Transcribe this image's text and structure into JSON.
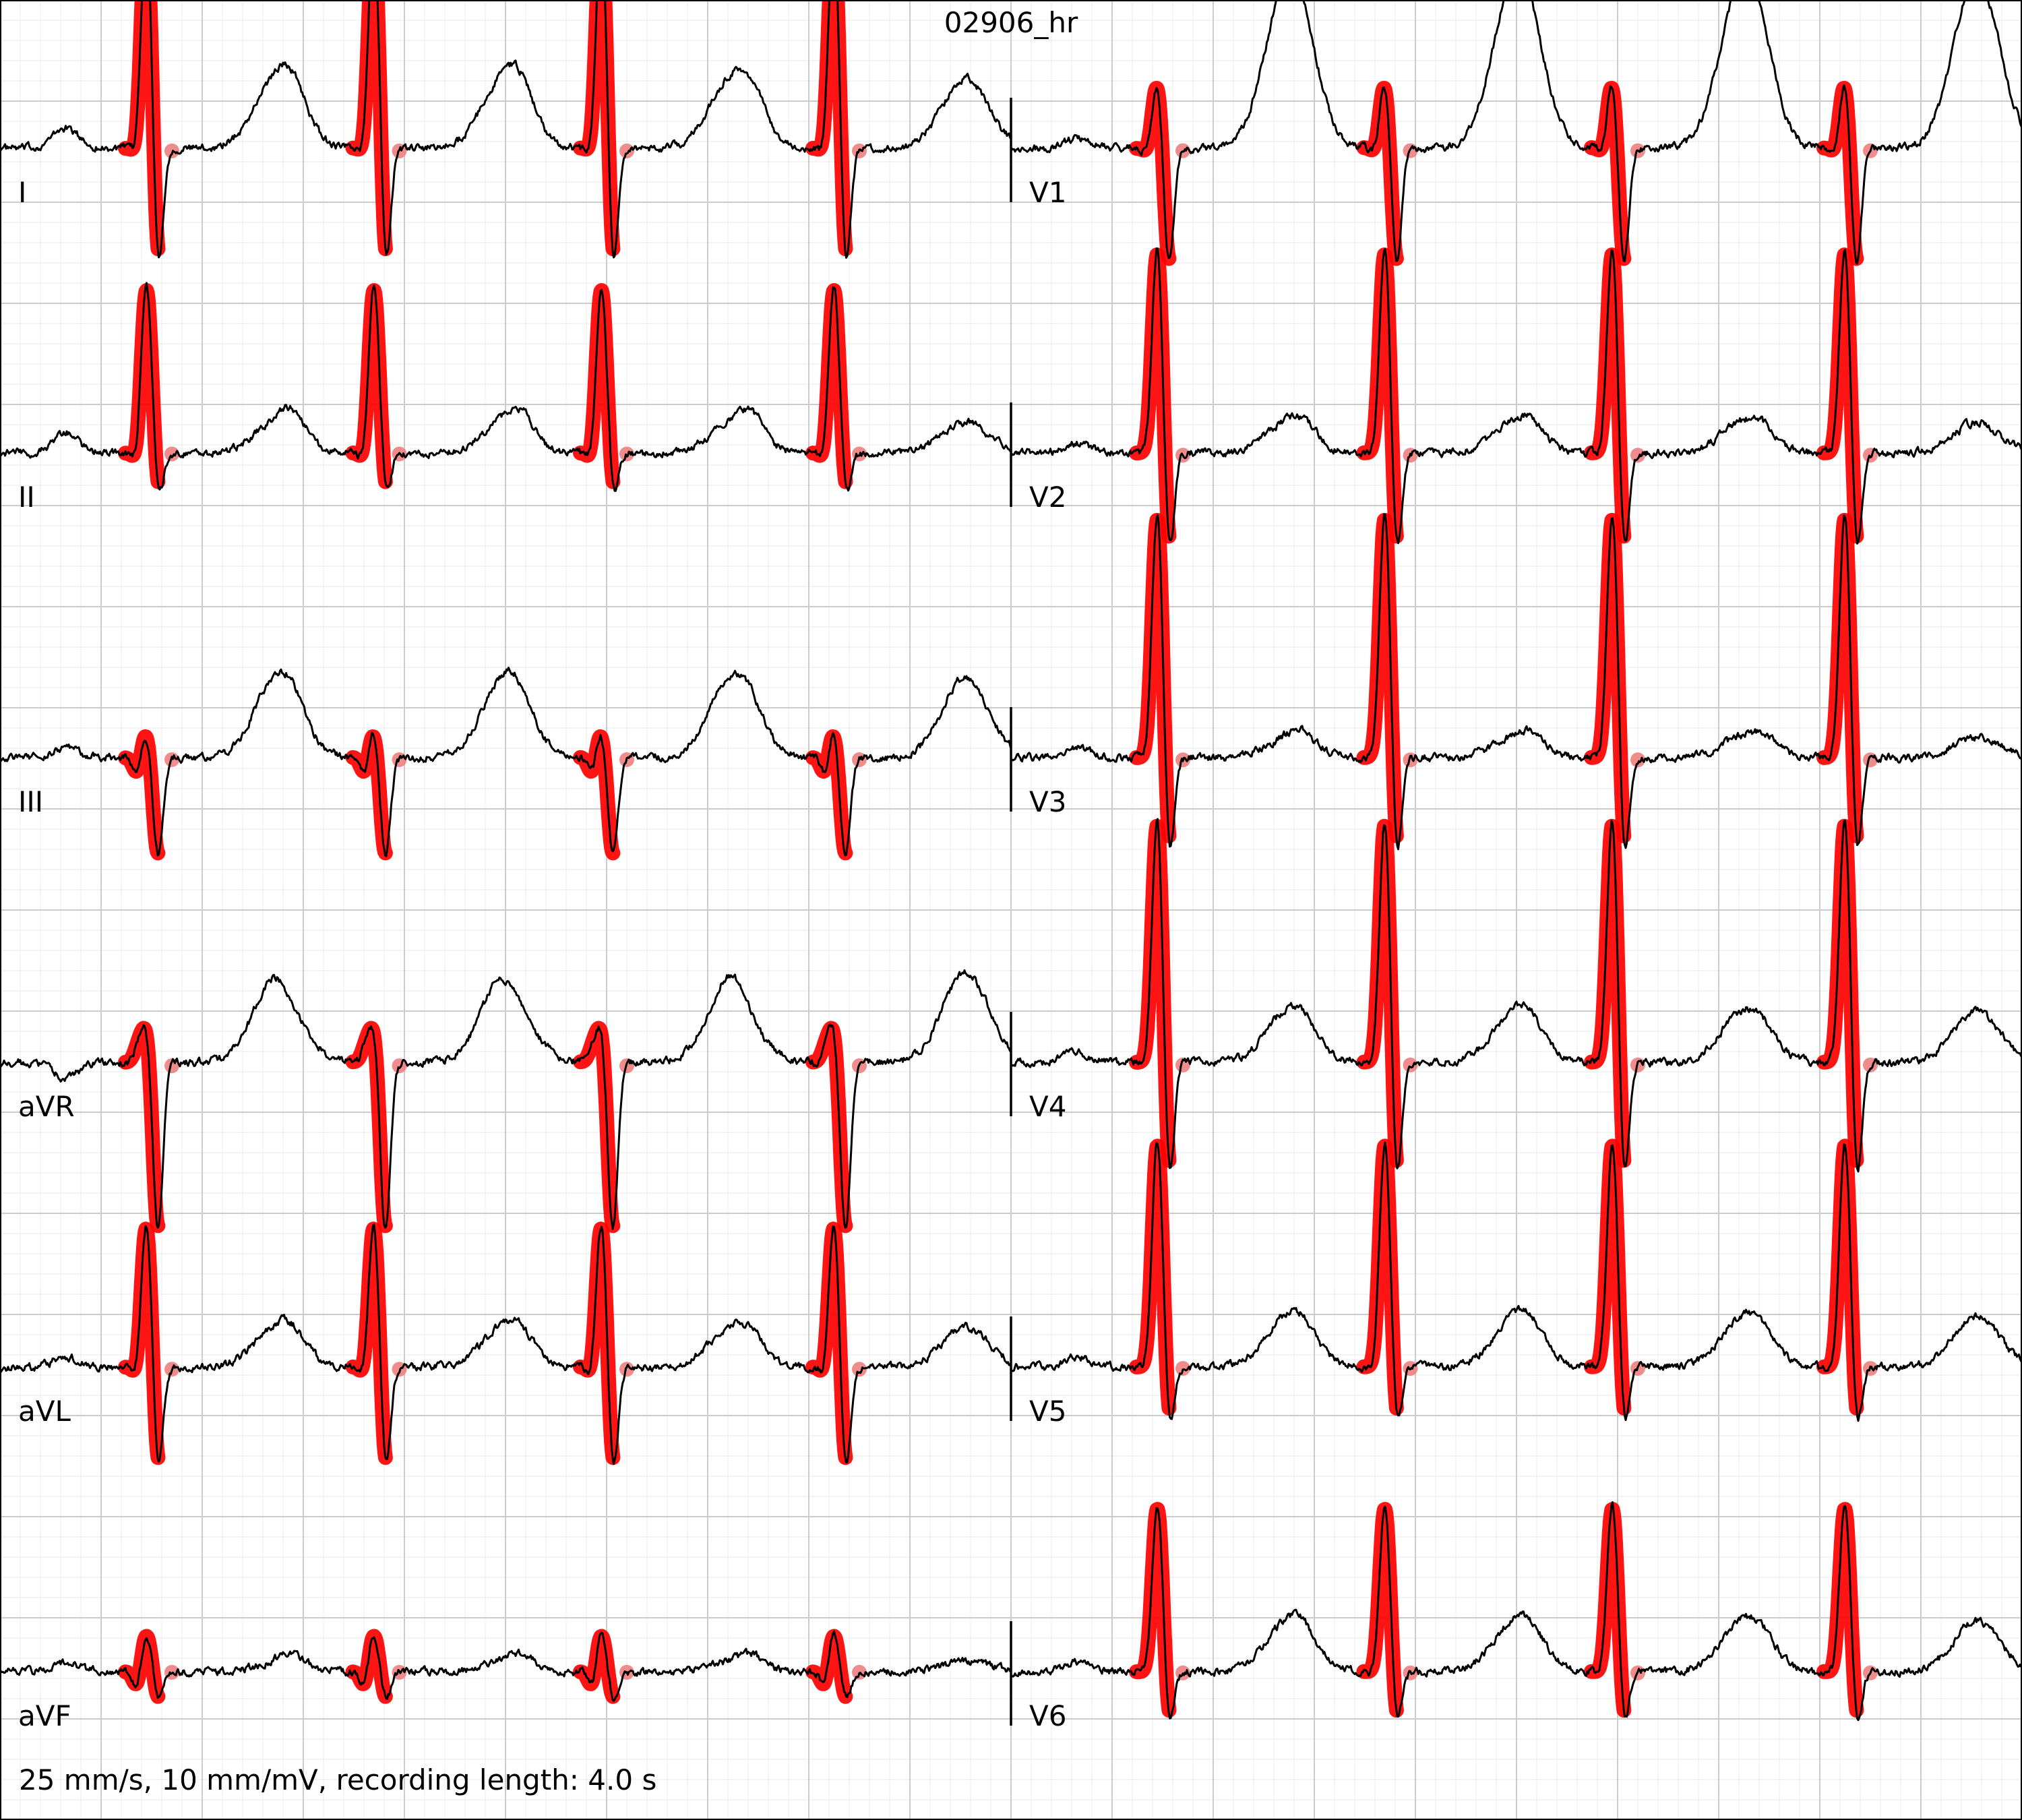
{
  "title": "02906_hr",
  "footer": "25 mm/s, 10 mm/mV, recording length: 4.0 s",
  "colors": {
    "grid_minor": "#eeeeee",
    "grid_major": "#cccccc",
    "trace": "#000000",
    "highlight": "#ff0000",
    "highlight_faded": "#f08080"
  },
  "chart_data": {
    "type": "line",
    "paper_speed_mm_per_s": 25,
    "gain_mm_per_mV": 10,
    "recording_length_s": 4.0,
    "columns": [
      {
        "t_start": 0.0,
        "t_end": 2.0
      },
      {
        "t_start": 2.0,
        "t_end": 4.0
      }
    ],
    "leads": [
      {
        "name": "I",
        "col": 0,
        "row": 0,
        "qrs": [
          0.29,
          0.74,
          1.19,
          1.65
        ],
        "r": 1.15,
        "q": -0.1,
        "s": -0.65,
        "t": 0.35,
        "p": 0.1
      },
      {
        "name": "II",
        "col": 0,
        "row": 1,
        "qrs": [
          0.29,
          0.74,
          1.19,
          1.65
        ],
        "r": 0.85,
        "q": -0.1,
        "s": -0.25,
        "t": 0.15,
        "p": 0.1
      },
      {
        "name": "III",
        "col": 0,
        "row": 2,
        "qrs": [
          0.29,
          0.74,
          1.19,
          1.65
        ],
        "r": 0.15,
        "q": -0.1,
        "s": -0.5,
        "t": 0.4,
        "p": 0.05
      },
      {
        "name": "aVR",
        "col": 0,
        "row": 3,
        "qrs": [
          0.29,
          0.74,
          1.19,
          1.65
        ],
        "r": 0.2,
        "q": 0.05,
        "s": -0.85,
        "t": 0.45,
        "p": -0.08
      },
      {
        "name": "aVL",
        "col": 0,
        "row": 4,
        "qrs": [
          0.29,
          0.74,
          1.19,
          1.65
        ],
        "r": 0.75,
        "q": -0.1,
        "s": -0.55,
        "t": 0.2,
        "p": 0.05
      },
      {
        "name": "aVF",
        "col": 0,
        "row": 5,
        "qrs": [
          0.29,
          0.74,
          1.19,
          1.65
        ],
        "r": 0.2,
        "q": -0.1,
        "s": -0.15,
        "t": 0.05,
        "p": 0.05
      },
      {
        "name": "V1",
        "col": 1,
        "row": 0,
        "qrs": [
          2.29,
          2.74,
          3.19,
          3.65
        ],
        "r": 0.35,
        "q": -0.05,
        "s": -0.6,
        "t": 0.85,
        "p": 0.05
      },
      {
        "name": "V2",
        "col": 1,
        "row": 1,
        "qrs": [
          2.29,
          2.74,
          3.19,
          3.65
        ],
        "r": 1.05,
        "q": -0.05,
        "s": -0.55,
        "t": 0.15,
        "p": 0.05
      },
      {
        "name": "V3",
        "col": 1,
        "row": 2,
        "qrs": [
          2.29,
          2.74,
          3.19,
          3.65
        ],
        "r": 1.25,
        "q": -0.05,
        "s": -0.55,
        "t": 0.1,
        "p": 0.05
      },
      {
        "name": "V4",
        "col": 1,
        "row": 3,
        "qrs": [
          2.29,
          2.74,
          3.19,
          3.65
        ],
        "r": 1.25,
        "q": -0.05,
        "s": -0.65,
        "t": 0.25,
        "p": 0.05
      },
      {
        "name": "V5",
        "col": 1,
        "row": 4,
        "qrs": [
          2.29,
          2.74,
          3.19,
          3.65
        ],
        "r": 1.15,
        "q": -0.05,
        "s": -0.35,
        "t": 0.25,
        "p": 0.05
      },
      {
        "name": "V6",
        "col": 1,
        "row": 5,
        "qrs": [
          2.29,
          2.74,
          3.19,
          3.65
        ],
        "r": 0.85,
        "q": -0.05,
        "s": -0.3,
        "t": 0.25,
        "p": 0.05
      }
    ]
  }
}
